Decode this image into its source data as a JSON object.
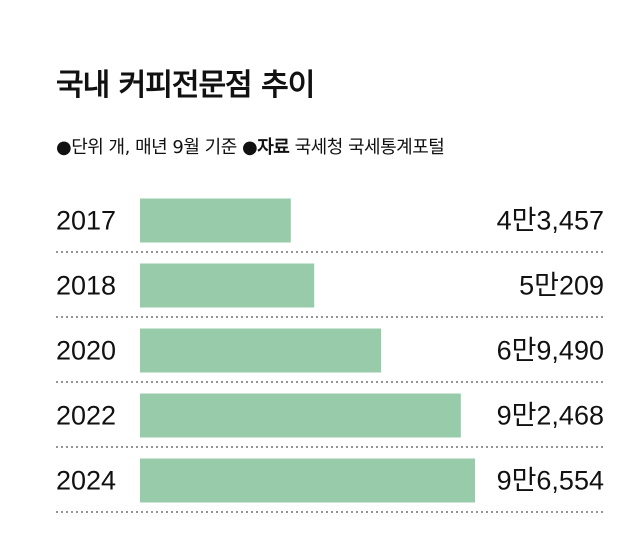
{
  "title": "국내 커피전문점 추이",
  "note": {
    "unit_text": "단위 개, 매년 9월 기준",
    "source_label": "자료",
    "source_text": "국세청 국세통계포털"
  },
  "colors": {
    "bar": "#98cba9",
    "separator": "#555555",
    "text": "#111111"
  },
  "chart_data": {
    "type": "bar",
    "orientation": "horizontal",
    "title": "국내 커피전문점 추이",
    "categories": [
      "2017",
      "2018",
      "2020",
      "2022",
      "2024"
    ],
    "values": [
      43457,
      50209,
      69490,
      92468,
      96554
    ],
    "value_labels": [
      "4만3,457",
      "5만209",
      "6만9,490",
      "9만2,468",
      "9만6,554"
    ],
    "unit": "개",
    "grid": false,
    "legend": "none"
  }
}
